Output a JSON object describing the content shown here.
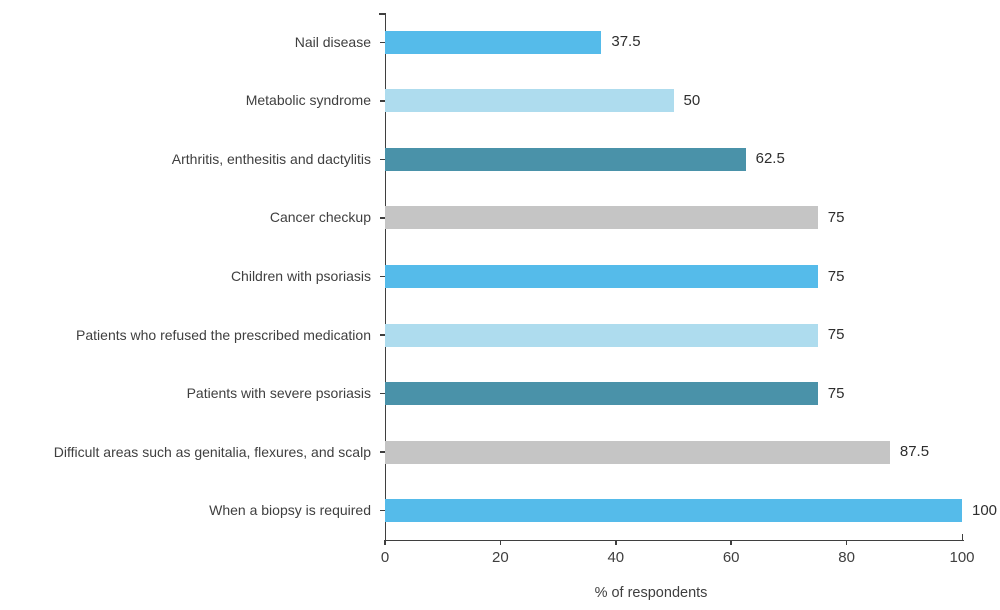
{
  "chart_data": {
    "type": "bar",
    "orientation": "horizontal",
    "xlabel": "% of respondents",
    "xlim": [
      0,
      100
    ],
    "x_ticks": [
      "0",
      "20",
      "40",
      "60",
      "80",
      "100"
    ],
    "grid": false,
    "legend": "none",
    "categories": [
      "Nail disease",
      "Metabolic syndrome",
      "Arthritis, enthesitis and dactylitis",
      "Cancer checkup",
      "Children with psoriasis",
      "Patients who refused the prescribed medication",
      "Patients with severe psoriasis",
      "Difficult areas such as genitalia, flexures, and scalp",
      "When a biopsy is required"
    ],
    "values": [
      37.5,
      50,
      62.5,
      75,
      75,
      75,
      75,
      87.5,
      100
    ],
    "value_labels": [
      "37.5",
      "50",
      "62.5",
      "75",
      "75",
      "75",
      "75",
      "87.5",
      "100"
    ],
    "bar_colors": [
      "#55BBEA",
      "#AEDCEE",
      "#4A92A9",
      "#C5C5C5",
      "#55BBEA",
      "#AEDCEE",
      "#4A92A9",
      "#C5C5C5",
      "#55BBEA"
    ],
    "palette": {
      "bright_blue": "#55BBEA",
      "light_blue": "#AEDCEE",
      "teal_blue": "#4A92A9",
      "gray": "#C5C5C5",
      "axis": "#3F3F3F",
      "category_text": "#3F3F3F",
      "value_text": "#2E2E2E"
    }
  }
}
